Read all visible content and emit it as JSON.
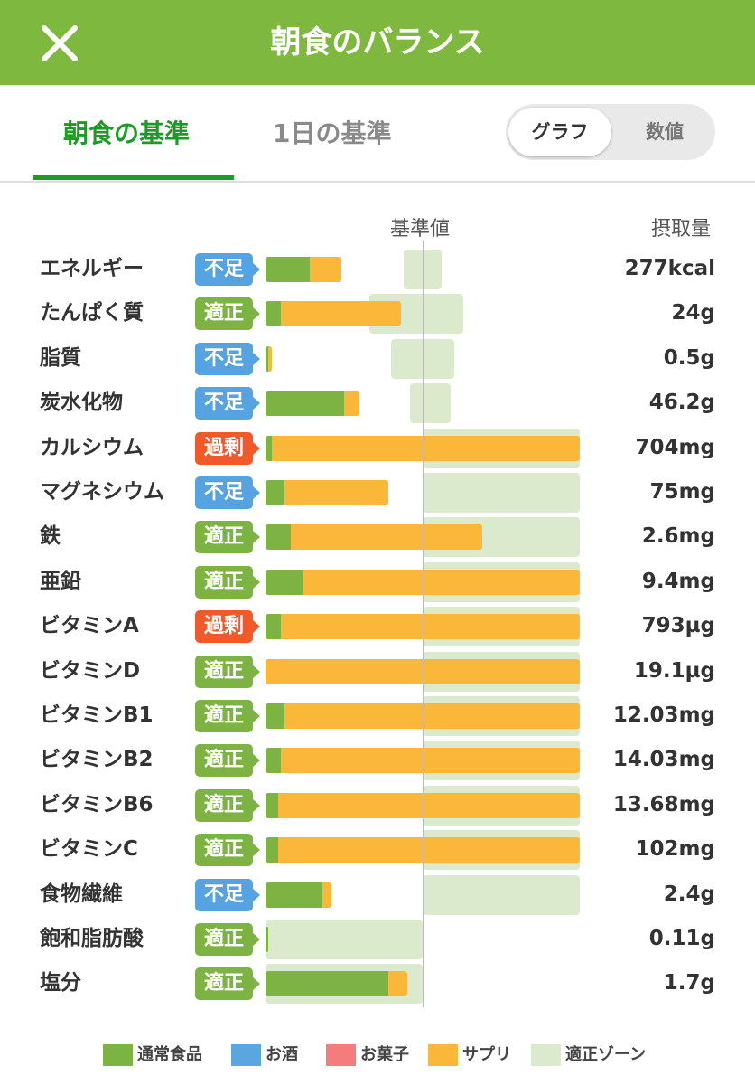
{
  "header": {
    "title": "朝食のバランス",
    "close_icon": "close-icon"
  },
  "tabs": [
    {
      "label": "朝食の基準",
      "active": true
    },
    {
      "label": "1日の基準",
      "active": false
    }
  ],
  "view_toggle": {
    "graph_label": "グラフ",
    "numeric_label": "数値",
    "selected": "グラフ"
  },
  "columns": {
    "reference_label": "基準値",
    "intake_label": "摂取量"
  },
  "status_colors": {
    "不足": "#55a3e0",
    "適正": "#7cb342",
    "過剰": "#f1592a"
  },
  "colors": {
    "regular_food": "#7cb342",
    "alcohol": "#5aa6e0",
    "sweets": "#f47c7c",
    "supplement": "#fbb73a",
    "proper_zone": "#dbeacc"
  },
  "nutrients": [
    {
      "name": "エネルギー",
      "status": "不足",
      "value": "277kcal",
      "regular_food_pct": 14,
      "supplement_pct": 10,
      "zone_pct": [
        44,
        56
      ]
    },
    {
      "name": "たんぱく質",
      "status": "適正",
      "value": "24g",
      "regular_food_pct": 5,
      "supplement_pct": 38,
      "zone_pct": [
        33,
        63
      ]
    },
    {
      "name": "脂質",
      "status": "不足",
      "value": "0.5g",
      "regular_food_pct": 1,
      "supplement_pct": 1,
      "zone_pct": [
        40,
        60
      ]
    },
    {
      "name": "炭水化物",
      "status": "不足",
      "value": "46.2g",
      "regular_food_pct": 25,
      "supplement_pct": 5,
      "zone_pct": [
        46,
        59
      ]
    },
    {
      "name": "カルシウム",
      "status": "過剰",
      "value": "704mg",
      "regular_food_pct": 2,
      "supplement_pct": 98,
      "zone_pct": [
        50,
        100
      ]
    },
    {
      "name": "マグネシウム",
      "status": "不足",
      "value": "75mg",
      "regular_food_pct": 6,
      "supplement_pct": 33,
      "zone_pct": [
        50,
        100
      ]
    },
    {
      "name": "鉄",
      "status": "適正",
      "value": "2.6mg",
      "regular_food_pct": 8,
      "supplement_pct": 61,
      "zone_pct": [
        50,
        100
      ]
    },
    {
      "name": "亜鉛",
      "status": "適正",
      "value": "9.4mg",
      "regular_food_pct": 12,
      "supplement_pct": 88,
      "zone_pct": [
        50,
        100
      ]
    },
    {
      "name": "ビタミンA",
      "status": "過剰",
      "value": "793µg",
      "regular_food_pct": 5,
      "supplement_pct": 95,
      "zone_pct": [
        50,
        100
      ]
    },
    {
      "name": "ビタミンD",
      "status": "適正",
      "value": "19.1µg",
      "regular_food_pct": 0,
      "supplement_pct": 100,
      "zone_pct": [
        50,
        100
      ]
    },
    {
      "name": "ビタミンB1",
      "status": "適正",
      "value": "12.03mg",
      "regular_food_pct": 6,
      "supplement_pct": 94,
      "zone_pct": [
        50,
        100
      ]
    },
    {
      "name": "ビタミンB2",
      "status": "適正",
      "value": "14.03mg",
      "regular_food_pct": 5,
      "supplement_pct": 95,
      "zone_pct": [
        50,
        100
      ]
    },
    {
      "name": "ビタミンB6",
      "status": "適正",
      "value": "13.68mg",
      "regular_food_pct": 4,
      "supplement_pct": 96,
      "zone_pct": [
        50,
        100
      ]
    },
    {
      "name": "ビタミンC",
      "status": "適正",
      "value": "102mg",
      "regular_food_pct": 4,
      "supplement_pct": 96,
      "zone_pct": [
        50,
        100
      ]
    },
    {
      "name": "食物繊維",
      "status": "不足",
      "value": "2.4g",
      "regular_food_pct": 18,
      "supplement_pct": 3,
      "zone_pct": [
        50,
        100
      ]
    },
    {
      "name": "飽和脂肪酸",
      "status": "適正",
      "value": "0.11g",
      "regular_food_pct": 1,
      "supplement_pct": 0,
      "zone_pct": [
        0,
        50
      ]
    },
    {
      "name": "塩分",
      "status": "適正",
      "value": "1.7g",
      "regular_food_pct": 39,
      "supplement_pct": 6,
      "zone_pct": [
        0,
        50
      ]
    }
  ],
  "legend": [
    {
      "label": "通常食品",
      "color": "#7cb342"
    },
    {
      "label": "お酒",
      "color": "#5aa6e0"
    },
    {
      "label": "お菓子",
      "color": "#f47c7c"
    },
    {
      "label": "サプリ",
      "color": "#fbb73a"
    },
    {
      "label": "適正ゾーン",
      "color": "#dbeacc"
    }
  ]
}
